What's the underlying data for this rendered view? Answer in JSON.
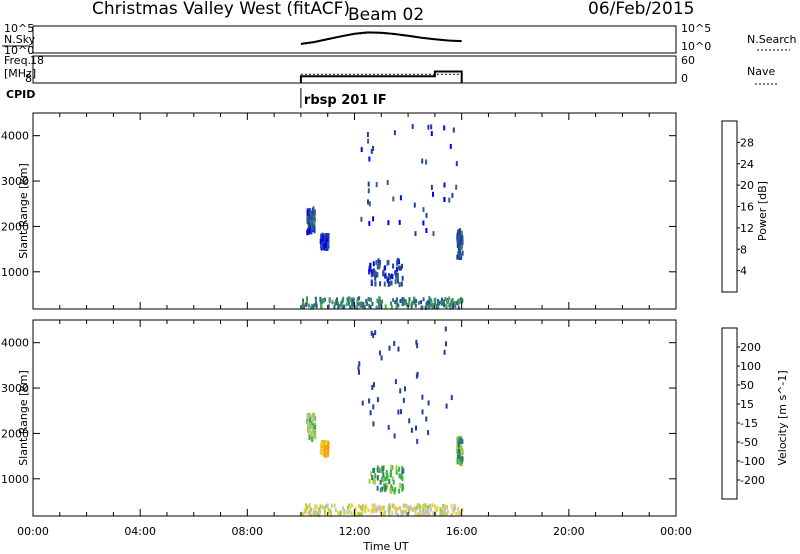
{
  "header": {
    "station": "Christmas Valley West (fitACF)",
    "beam": "Beam 02",
    "date": "06/Feb/2015"
  },
  "noise_panel": {
    "left_label": "N.Sky",
    "left_ticks": [
      "10^5",
      "10^0"
    ],
    "right_ticks": [
      "10^5",
      "10^0"
    ],
    "right_label": "N.Search"
  },
  "freq_panel": {
    "left_label_1": "Freq.",
    "left_label_2": "[MHz]",
    "left_ticks": [
      "18",
      "8"
    ],
    "right_ticks": [
      "60",
      "0"
    ],
    "right_label": "Nave"
  },
  "cpid": {
    "label": "CPID",
    "program": "rbsp 201 IF"
  },
  "x_axis": {
    "label": "Time UT",
    "ticks": [
      "00:00",
      "04:00",
      "08:00",
      "12:00",
      "16:00",
      "20:00",
      "00:00"
    ]
  },
  "colors": {
    "power": [
      "#0000ff",
      "#1e3fa0",
      "#2f5f8a",
      "#3c8c6a",
      "#3cb43c",
      "#a0d040",
      "#f0c000",
      "#f08000",
      "#e04000",
      "#ff0000"
    ],
    "velocity": [
      "#ff0000",
      "#f06000",
      "#f0a000",
      "#f0d040",
      "#c0c0c0",
      "#a0d040",
      "#3cb43c",
      "#2f6f8a",
      "#1e3fa0",
      "#0000ff"
    ]
  },
  "chart_data": [
    {
      "type": "line",
      "title": "",
      "ylabel": "N.Sky",
      "xlabel": "",
      "xlim": [
        0,
        24
      ],
      "x": [
        10.0,
        10.5,
        11.0,
        11.5,
        12.0,
        12.5,
        13.0,
        13.5,
        14.0,
        14.5,
        15.0,
        15.5,
        16.0
      ],
      "series": [
        {
          "name": "N.Sky",
          "values": [
            80,
            200,
            800,
            3000,
            10000,
            20000,
            16000,
            9000,
            4000,
            1500,
            700,
            400,
            300
          ]
        },
        {
          "name": "N.Search",
          "values": [
            60,
            150,
            600,
            2500,
            8000,
            15000,
            12000,
            7000,
            3000,
            1200,
            600,
            350,
            250
          ]
        }
      ]
    },
    {
      "type": "line",
      "title": "",
      "ylabel": "Freq. [MHz]",
      "xlabel": "",
      "xlim": [
        0,
        24
      ],
      "ylim": [
        8,
        18
      ],
      "x": [
        10.0,
        15.0,
        15.0,
        16.0
      ],
      "series": [
        {
          "name": "Freq.",
          "values": [
            10.8,
            10.8,
            12.8,
            12.8
          ]
        },
        {
          "name": "Nave",
          "values": [
            22,
            22,
            22,
            22
          ]
        }
      ]
    },
    {
      "type": "heatmap",
      "title": "",
      "parameter": "Power [dB]",
      "ylabel": "Slant Range [km]",
      "xlabel": "Time UT",
      "xlim": [
        0,
        24
      ],
      "ylim": [
        180,
        4500
      ],
      "yticks": [
        "1000",
        "2000",
        "3000",
        "4000"
      ],
      "colorbar_ticks": [
        "4",
        "8",
        "12",
        "16",
        "20",
        "24",
        "28"
      ],
      "clusters": [
        {
          "t": [
            10.0,
            16.0
          ],
          "range": [
            180,
            400
          ],
          "value": 10
        },
        {
          "t": [
            10.2,
            10.5
          ],
          "range": [
            1850,
            2400
          ],
          "value": 6
        },
        {
          "t": [
            10.7,
            11.0
          ],
          "range": [
            1500,
            1800
          ],
          "value": 5
        },
        {
          "t": [
            12.5,
            13.8
          ],
          "range": [
            700,
            1250
          ],
          "value": 6
        },
        {
          "t": [
            15.8,
            16.0
          ],
          "range": [
            1300,
            1900
          ],
          "value": 6
        },
        {
          "t": [
            12.0,
            15.8
          ],
          "range": [
            1800,
            4300
          ],
          "value": 5
        }
      ]
    },
    {
      "type": "heatmap",
      "title": "",
      "parameter": "Velocity [m s^-1]",
      "ylabel": "Slant Range [km]",
      "xlabel": "Time UT",
      "xlim": [
        0,
        24
      ],
      "ylim": [
        180,
        4500
      ],
      "yticks": [
        "1000",
        "2000",
        "3000",
        "4000"
      ],
      "colorbar_ticks": [
        "200",
        "100",
        "50",
        "15",
        "-15",
        "-50",
        "-100",
        "-200"
      ],
      "clusters": [
        {
          "t": [
            10.0,
            16.0
          ],
          "range": [
            180,
            400
          ],
          "value": -40
        },
        {
          "t": [
            10.2,
            10.5
          ],
          "range": [
            1850,
            2400
          ],
          "value": 0
        },
        {
          "t": [
            10.7,
            11.0
          ],
          "range": [
            1500,
            1800
          ],
          "value": -100
        },
        {
          "t": [
            12.5,
            13.8
          ],
          "range": [
            700,
            1250
          ],
          "value": 30
        },
        {
          "t": [
            15.8,
            16.0
          ],
          "range": [
            1300,
            1900
          ],
          "value": 40
        },
        {
          "t": [
            12.0,
            15.8
          ],
          "range": [
            1800,
            4300
          ],
          "value": 150
        }
      ]
    }
  ]
}
